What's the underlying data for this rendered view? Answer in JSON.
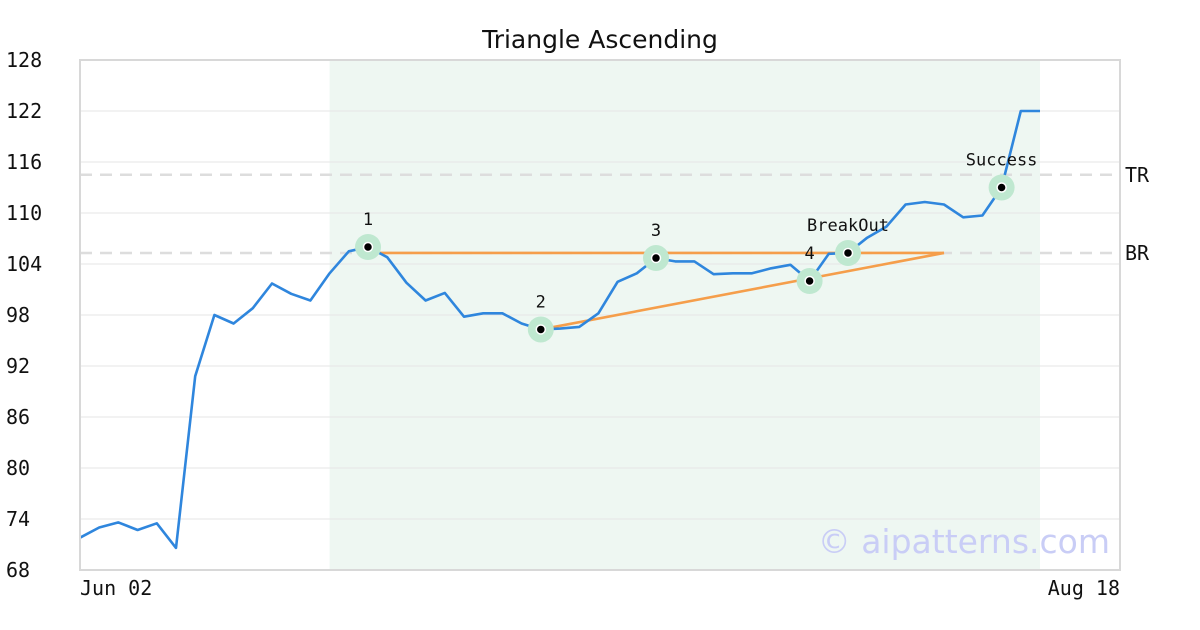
{
  "chart_data": {
    "type": "line",
    "title": "Triangle Ascending",
    "watermark": "© aipatterns.com",
    "x_tick_labels": [
      "Jun 02",
      "Aug 18"
    ],
    "y_ticks": [
      68,
      74,
      80,
      86,
      92,
      98,
      104,
      110,
      116,
      122,
      128
    ],
    "ylim": [
      68,
      128
    ],
    "series": [
      {
        "values": [
          71.8,
          73.0,
          73.6,
          72.7,
          73.5,
          70.6,
          90.8,
          98.0,
          97.0,
          98.8,
          101.7,
          100.5,
          99.7,
          102.9,
          105.5,
          106.0,
          104.8,
          101.8,
          99.7,
          100.6,
          97.8,
          98.2,
          98.2,
          97.0,
          96.3,
          96.4,
          96.6,
          98.2,
          101.9,
          102.9,
          104.7,
          104.3,
          104.3,
          102.8,
          102.9,
          102.9,
          103.5,
          103.9,
          102.0,
          105.2,
          105.3,
          107.1,
          108.4,
          111.0,
          111.3,
          111.0,
          109.5,
          109.7,
          113.0,
          122.0,
          122.0
        ]
      }
    ],
    "highlight_range": {
      "from_index": 13,
      "to_index": 50
    },
    "levels": [
      {
        "label": "TR",
        "value": 114.5
      },
      {
        "label": "BR",
        "value": 105.3
      }
    ],
    "resistance_line": {
      "from_index": 15,
      "to_index": 45,
      "value": 105.3
    },
    "support_line": {
      "from_index": 24,
      "from_value": 96.3,
      "to_index": 45,
      "to_value": 105.3
    },
    "points": [
      {
        "label": "1",
        "index": 15,
        "value": 106.0,
        "label_pos": "above"
      },
      {
        "label": "2",
        "index": 24,
        "value": 96.3,
        "label_pos": "above"
      },
      {
        "label": "3",
        "index": 30,
        "value": 104.7,
        "label_pos": "above"
      },
      {
        "label": "4",
        "index": 38,
        "value": 102.0,
        "label_pos": "above"
      },
      {
        "label": "BreakOut",
        "index": 40,
        "value": 105.3,
        "label_pos": "above"
      },
      {
        "label": "Success",
        "index": 48,
        "value": 113.0,
        "label_pos": "above"
      }
    ],
    "grid": true,
    "colors": {
      "price": "#2f86dd",
      "pattern": "#f59e4b",
      "highlight": "#eef7f2",
      "marker_halo": "#bfe8d0",
      "level": "#dddddd",
      "grid": "#e6e6e6",
      "frame": "#d8d8d8",
      "watermark": "#c9cdf6"
    }
  }
}
